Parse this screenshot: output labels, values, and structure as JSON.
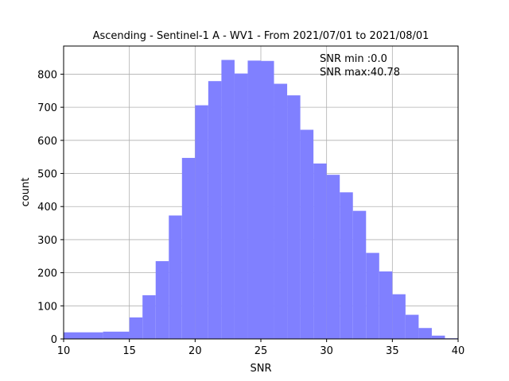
{
  "chart_data": {
    "type": "bar",
    "title": "Ascending - Sentinel-1 A - WV1 - From 2021/07/01 to 2021/08/01",
    "xlabel": "SNR",
    "ylabel": "count",
    "xlim": [
      10,
      40
    ],
    "ylim": [
      0,
      885
    ],
    "x_ticks": [
      10,
      15,
      20,
      25,
      30,
      35,
      40
    ],
    "y_ticks": [
      0,
      100,
      200,
      300,
      400,
      500,
      600,
      700,
      800
    ],
    "grid": true,
    "bar_color": "#8080ff",
    "bins": [
      {
        "x0": 10.0,
        "x1": 13.0,
        "count": 20
      },
      {
        "x0": 13.0,
        "x1": 15.0,
        "count": 22
      },
      {
        "x0": 15.0,
        "x1": 16.0,
        "count": 65
      },
      {
        "x0": 16.0,
        "x1": 17.0,
        "count": 132
      },
      {
        "x0": 17.0,
        "x1": 18.0,
        "count": 235
      },
      {
        "x0": 18.0,
        "x1": 19.0,
        "count": 373
      },
      {
        "x0": 19.0,
        "x1": 20.0,
        "count": 547
      },
      {
        "x0": 20.0,
        "x1": 21.0,
        "count": 706
      },
      {
        "x0": 21.0,
        "x1": 22.0,
        "count": 779
      },
      {
        "x0": 22.0,
        "x1": 23.0,
        "count": 843
      },
      {
        "x0": 23.0,
        "x1": 24.0,
        "count": 802
      },
      {
        "x0": 24.0,
        "x1": 25.0,
        "count": 841
      },
      {
        "x0": 25.0,
        "x1": 26.0,
        "count": 840
      },
      {
        "x0": 26.0,
        "x1": 27.0,
        "count": 771
      },
      {
        "x0": 27.0,
        "x1": 28.0,
        "count": 736
      },
      {
        "x0": 28.0,
        "x1": 29.0,
        "count": 632
      },
      {
        "x0": 29.0,
        "x1": 30.0,
        "count": 530
      },
      {
        "x0": 30.0,
        "x1": 31.0,
        "count": 496
      },
      {
        "x0": 31.0,
        "x1": 32.0,
        "count": 443
      },
      {
        "x0": 32.0,
        "x1": 33.0,
        "count": 387
      },
      {
        "x0": 33.0,
        "x1": 34.0,
        "count": 260
      },
      {
        "x0": 34.0,
        "x1": 35.0,
        "count": 204
      },
      {
        "x0": 35.0,
        "x1": 36.0,
        "count": 135
      },
      {
        "x0": 36.0,
        "x1": 37.0,
        "count": 73
      },
      {
        "x0": 37.0,
        "x1": 38.0,
        "count": 33
      },
      {
        "x0": 38.0,
        "x1": 39.0,
        "count": 10
      },
      {
        "x0": 39.0,
        "x1": 40.0,
        "count": 2
      }
    ],
    "annotations": [
      "SNR min :0.0",
      "SNR max:40.78"
    ]
  }
}
